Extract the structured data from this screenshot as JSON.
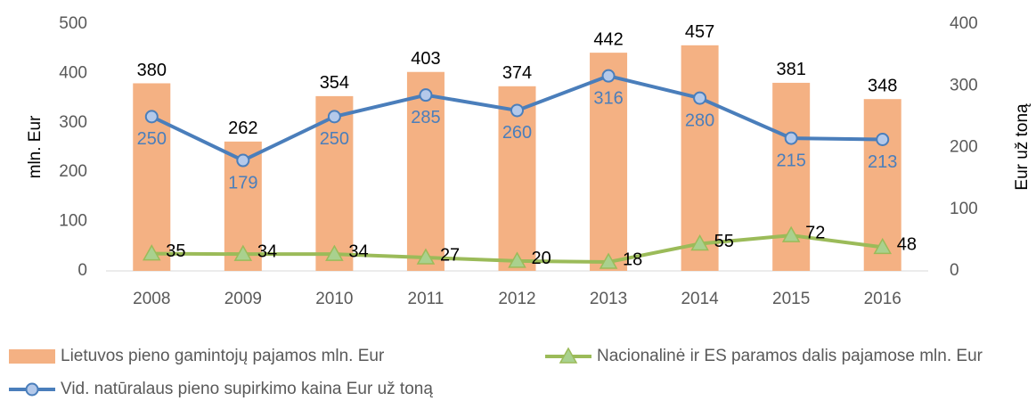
{
  "chart_data": {
    "type": "bar",
    "categories": [
      "2008",
      "2009",
      "2010",
      "2011",
      "2012",
      "2013",
      "2014",
      "2015",
      "2016"
    ],
    "ylabel": "mln. Eur",
    "y2label": "Eur už toną",
    "ylim": [
      0,
      500
    ],
    "yticks": [
      0,
      100,
      200,
      300,
      400,
      500
    ],
    "y2lim": [
      0,
      400
    ],
    "y2ticks": [
      0,
      100,
      200,
      300,
      400
    ],
    "legend": "bottom",
    "series": [
      {
        "name": "Lietuvos pieno gamintojų pajamos mln. Eur",
        "type": "bar",
        "color": "#f4b183",
        "values": [
          380,
          262,
          354,
          403,
          374,
          442,
          457,
          381,
          348
        ]
      },
      {
        "name": "Nacionalinė ir ES paramos dalis pajamose mln. Eur",
        "type": "line",
        "marker": "triangle",
        "color": "#9bbb59",
        "values": [
          35,
          34,
          34,
          27,
          20,
          18,
          55,
          72,
          48
        ]
      },
      {
        "name": "Vid. natūralaus pieno supirkimo kaina Eur už toną",
        "type": "line",
        "marker": "circle",
        "axis": "y2",
        "color": "#4a7ebb",
        "values": [
          250,
          179,
          250,
          285,
          260,
          316,
          280,
          215,
          213
        ]
      }
    ]
  }
}
